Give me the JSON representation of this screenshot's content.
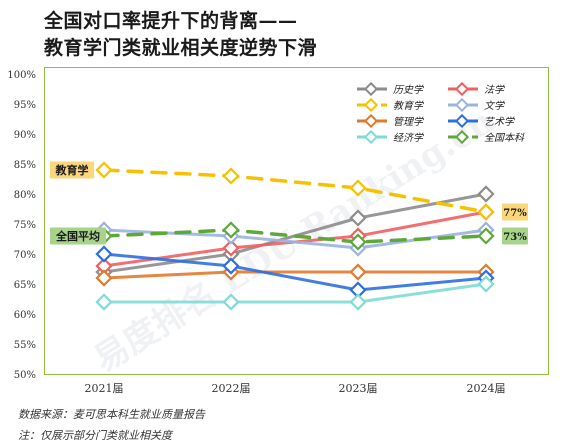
{
  "title_line1": "全国对口率提升下的背离——",
  "title_line2": "教育学门类就业相关度逆势下滑",
  "source_line": "数据来源：麦可思本科生就业质量报告",
  "note_line": "注：仅展示部分门类就业相关度",
  "watermark": "易度排名 EDU Ranking.cn",
  "chart_data": {
    "type": "line",
    "categories": [
      "2021届",
      "2022届",
      "2023届",
      "2024届"
    ],
    "ylim": [
      50,
      100
    ],
    "yticks": [
      "50%",
      "55%",
      "60%",
      "65%",
      "70%",
      "75%",
      "80%",
      "85%",
      "90%",
      "95%",
      "100%"
    ],
    "grid": false,
    "legend_position": "top-right",
    "series": [
      {
        "name": "历史学",
        "values": [
          67,
          70,
          76,
          80
        ],
        "color": "#8c8c8c",
        "dashed": false,
        "highlight": false
      },
      {
        "name": "法学",
        "values": [
          68,
          71,
          73,
          77
        ],
        "color": "#f0605e",
        "dashed": false,
        "highlight": false
      },
      {
        "name": "教育学",
        "values": [
          84,
          83,
          81,
          77
        ],
        "color": "#f6c200",
        "dashed": true,
        "highlight": true
      },
      {
        "name": "文学",
        "values": [
          74,
          73,
          71,
          74
        ],
        "color": "#9bb3e0",
        "dashed": false,
        "highlight": false
      },
      {
        "name": "管理学",
        "values": [
          66,
          67,
          67,
          67
        ],
        "color": "#e07a2e",
        "dashed": false,
        "highlight": false
      },
      {
        "name": "艺术学",
        "values": [
          70,
          68,
          64,
          66
        ],
        "color": "#2e6fe0",
        "dashed": false,
        "highlight": false
      },
      {
        "name": "经济学",
        "values": [
          62,
          62,
          62,
          65
        ],
        "color": "#7fdcd4",
        "dashed": false,
        "highlight": false
      },
      {
        "name": "全国本科",
        "values": [
          73,
          74,
          72,
          73
        ],
        "color": "#5ea83a",
        "dashed": true,
        "highlight": true
      }
    ],
    "annotations": [
      {
        "text": "教育学",
        "series": "教育学",
        "color": "#f9d77a"
      },
      {
        "text": "全国平均",
        "series": "全国本科",
        "color": "#a7d48a"
      },
      {
        "text": "77%",
        "series": "教育学",
        "color": "#f9d77a"
      },
      {
        "text": "73%",
        "series": "全国本科",
        "color": "#a7d48a"
      }
    ]
  }
}
